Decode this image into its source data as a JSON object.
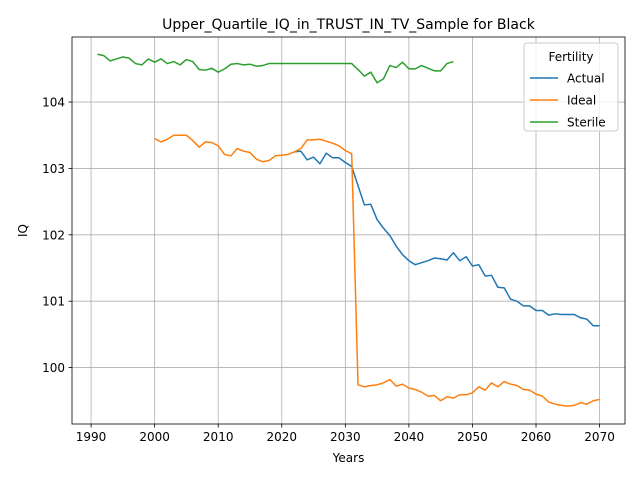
{
  "chart_data": {
    "type": "line",
    "title": "Upper_Quartile_IQ_in_TRUST_IN_TV_Sample for Black",
    "xlabel": "Years",
    "ylabel": "IQ",
    "xlim": [
      1987,
      2074
    ],
    "ylim": [
      99.15,
      104.98
    ],
    "xticks": [
      1990,
      2000,
      2010,
      2020,
      2030,
      2040,
      2050,
      2060,
      2070
    ],
    "yticks": [
      100,
      101,
      102,
      103,
      104
    ],
    "grid": true,
    "legend": {
      "title": "Fertility",
      "placement": "top-right"
    },
    "series": [
      {
        "name": "Actual",
        "color": "#1f77b4",
        "x": [
          2022,
          2023,
          2024,
          2025,
          2026,
          2027,
          2028,
          2029,
          2030,
          2031,
          2032,
          2033,
          2034,
          2035,
          2036,
          2037,
          2038,
          2039,
          2040,
          2041,
          2042,
          2043,
          2044,
          2045,
          2046,
          2047,
          2048,
          2049,
          2050,
          2051,
          2052,
          2053,
          2054,
          2055,
          2056,
          2057,
          2058,
          2059,
          2060,
          2061,
          2062,
          2063,
          2064,
          2065,
          2066,
          2067,
          2068,
          2069,
          2070
        ],
        "y": [
          103.25,
          103.26,
          103.13,
          103.17,
          103.07,
          103.23,
          103.16,
          103.16,
          103.09,
          103.03,
          102.74,
          102.45,
          102.46,
          102.23,
          102.1,
          101.99,
          101.83,
          101.7,
          101.61,
          101.55,
          101.58,
          101.61,
          101.65,
          101.64,
          101.62,
          101.73,
          101.61,
          101.67,
          101.53,
          101.55,
          101.38,
          101.39,
          101.21,
          101.2,
          101.03,
          101.0,
          100.93,
          100.93,
          100.86,
          100.86,
          100.79,
          100.81,
          100.8,
          100.8,
          100.8,
          100.75,
          100.73,
          100.63,
          100.63
        ]
      },
      {
        "name": "Ideal",
        "color": "#ff7f0e",
        "x": [
          2000,
          2001,
          2002,
          2003,
          2004,
          2005,
          2006,
          2007,
          2008,
          2009,
          2010,
          2011,
          2012,
          2013,
          2014,
          2015,
          2016,
          2017,
          2018,
          2019,
          2020,
          2021,
          2022,
          2023,
          2024,
          2025,
          2026,
          2027,
          2028,
          2029,
          2030,
          2031,
          2032,
          2033,
          2034,
          2035,
          2036,
          2037,
          2038,
          2039,
          2040,
          2041,
          2042,
          2043,
          2044,
          2045,
          2046,
          2047,
          2048,
          2049,
          2050,
          2051,
          2052,
          2053,
          2054,
          2055,
          2056,
          2057,
          2058,
          2059,
          2060,
          2061,
          2062,
          2063,
          2064,
          2065,
          2066,
          2067,
          2068,
          2069,
          2070
        ],
        "y": [
          103.45,
          103.4,
          103.44,
          103.5,
          103.5,
          103.5,
          103.42,
          103.32,
          103.4,
          103.39,
          103.34,
          103.21,
          103.19,
          103.3,
          103.26,
          103.24,
          103.14,
          103.1,
          103.12,
          103.19,
          103.2,
          103.21,
          103.25,
          103.3,
          103.43,
          103.43,
          103.44,
          103.41,
          103.38,
          103.34,
          103.27,
          103.22,
          99.74,
          99.71,
          99.73,
          99.74,
          99.77,
          99.82,
          99.72,
          99.75,
          99.69,
          99.67,
          99.63,
          99.57,
          99.58,
          99.5,
          99.56,
          99.54,
          99.59,
          99.59,
          99.62,
          99.71,
          99.66,
          99.77,
          99.71,
          99.79,
          99.75,
          99.73,
          99.67,
          99.66,
          99.6,
          99.57,
          99.48,
          99.45,
          99.43,
          99.42,
          99.43,
          99.47,
          99.45,
          99.5,
          99.52
        ]
      },
      {
        "name": "Sterile",
        "color": "#2ca02c",
        "x": [
          1991,
          1992,
          1993,
          1994,
          1995,
          1996,
          1997,
          1998,
          1999,
          2000,
          2001,
          2002,
          2003,
          2004,
          2005,
          2006,
          2007,
          2008,
          2009,
          2010,
          2011,
          2012,
          2013,
          2014,
          2015,
          2016,
          2017,
          2018,
          2019,
          2020,
          2021,
          2022,
          2023,
          2024,
          2025,
          2026,
          2027,
          2028,
          2029,
          2030,
          2031,
          2032,
          2033,
          2034,
          2035,
          2036,
          2037,
          2038,
          2039,
          2040,
          2041,
          2042,
          2043,
          2044,
          2045,
          2046,
          2047
        ],
        "y": [
          104.72,
          104.7,
          104.62,
          104.65,
          104.68,
          104.66,
          104.58,
          104.56,
          104.65,
          104.6,
          104.65,
          104.58,
          104.61,
          104.56,
          104.64,
          104.61,
          104.49,
          104.48,
          104.51,
          104.45,
          104.5,
          104.57,
          104.58,
          104.56,
          104.57,
          104.54,
          104.55,
          104.58,
          104.58,
          104.58,
          104.58,
          104.58,
          104.58,
          104.58,
          104.58,
          104.58,
          104.58,
          104.58,
          104.58,
          104.58,
          104.58,
          104.49,
          104.39,
          104.45,
          104.29,
          104.35,
          104.55,
          104.52,
          104.6,
          104.5,
          104.5,
          104.55,
          104.51,
          104.47,
          104.47,
          104.58,
          104.61
        ]
      }
    ]
  }
}
